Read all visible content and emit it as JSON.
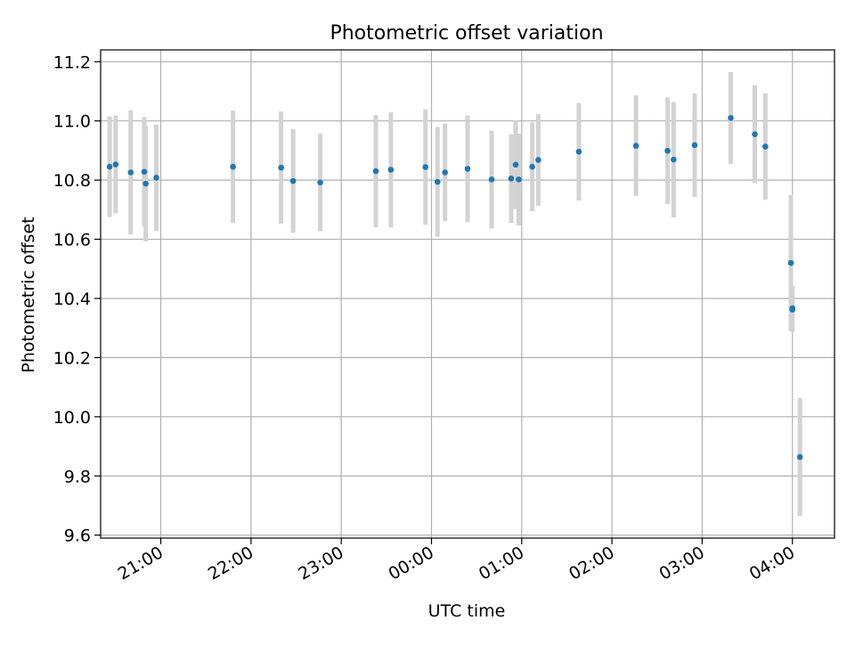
{
  "chart_data": {
    "type": "scatter",
    "title": "Photometric offset variation",
    "xlabel": "UTC time",
    "ylabel": "Photometric offset",
    "x_axis_kind": "time",
    "x_tick_labels": [
      "21:00",
      "22:00",
      "23:00",
      "00:00",
      "01:00",
      "02:00",
      "03:00",
      "04:00"
    ],
    "x_ticks": [
      "21:00",
      "22:00",
      "23:00",
      "00:00",
      "01:00",
      "02:00",
      "03:00",
      "04:00"
    ],
    "xlim": [
      "20:20",
      "04:28"
    ],
    "y_tick_labels": [
      "9.6",
      "9.8",
      "10.0",
      "10.2",
      "10.4",
      "10.6",
      "10.8",
      "11.0",
      "11.2"
    ],
    "yticks": [
      9.6,
      9.8,
      10.0,
      10.2,
      10.4,
      10.6,
      10.8,
      11.0,
      11.2
    ],
    "ylim": [
      9.59,
      11.24
    ],
    "grid": true,
    "legend": "none",
    "colors": {
      "marker": "#1f77b4",
      "errorbar": "#d3d3d3",
      "grid": "#b0b0b0"
    },
    "points": [
      {
        "x": "20:26",
        "y": 10.845,
        "yerr": 0.17
      },
      {
        "x": "20:30",
        "y": 10.853,
        "yerr": 0.165
      },
      {
        "x": "20:40",
        "y": 10.826,
        "yerr": 0.21
      },
      {
        "x": "20:49",
        "y": 10.828,
        "yerr": 0.185
      },
      {
        "x": "20:50",
        "y": 10.788,
        "yerr": 0.195
      },
      {
        "x": "20:57",
        "y": 10.808,
        "yerr": 0.18
      },
      {
        "x": "21:48",
        "y": 10.845,
        "yerr": 0.19
      },
      {
        "x": "22:20",
        "y": 10.842,
        "yerr": 0.19
      },
      {
        "x": "22:28",
        "y": 10.797,
        "yerr": 0.175
      },
      {
        "x": "22:46",
        "y": 10.792,
        "yerr": 0.165
      },
      {
        "x": "23:23",
        "y": 10.83,
        "yerr": 0.19
      },
      {
        "x": "23:33",
        "y": 10.835,
        "yerr": 0.195
      },
      {
        "x": "23:56",
        "y": 10.844,
        "yerr": 0.195
      },
      {
        "x": "00:04",
        "y": 10.794,
        "yerr": 0.185
      },
      {
        "x": "00:09",
        "y": 10.826,
        "yerr": 0.165
      },
      {
        "x": "00:24",
        "y": 10.838,
        "yerr": 0.18
      },
      {
        "x": "00:40",
        "y": 10.802,
        "yerr": 0.165
      },
      {
        "x": "00:53",
        "y": 10.805,
        "yerr": 0.15
      },
      {
        "x": "00:56",
        "y": 10.852,
        "yerr": 0.15
      },
      {
        "x": "00:58",
        "y": 10.802,
        "yerr": 0.155
      },
      {
        "x": "01:07",
        "y": 10.845,
        "yerr": 0.15
      },
      {
        "x": "01:11",
        "y": 10.868,
        "yerr": 0.155
      },
      {
        "x": "01:38",
        "y": 10.896,
        "yerr": 0.165
      },
      {
        "x": "02:16",
        "y": 10.916,
        "yerr": 0.17
      },
      {
        "x": "02:37",
        "y": 10.899,
        "yerr": 0.18
      },
      {
        "x": "02:41",
        "y": 10.869,
        "yerr": 0.195
      },
      {
        "x": "02:55",
        "y": 10.918,
        "yerr": 0.175
      },
      {
        "x": "03:19",
        "y": 11.01,
        "yerr": 0.155
      },
      {
        "x": "03:35",
        "y": 10.955,
        "yerr": 0.165
      },
      {
        "x": "03:42",
        "y": 10.913,
        "yerr": 0.18
      },
      {
        "x": "03:59",
        "y": 10.52,
        "yerr": 0.23
      },
      {
        "x": "04:00",
        "y": 10.367,
        "yerr": 0.075
      },
      {
        "x": "04:00",
        "y": 10.362,
        "yerr": 0.075
      },
      {
        "x": "04:05",
        "y": 9.864,
        "yerr": 0.2
      }
    ]
  }
}
